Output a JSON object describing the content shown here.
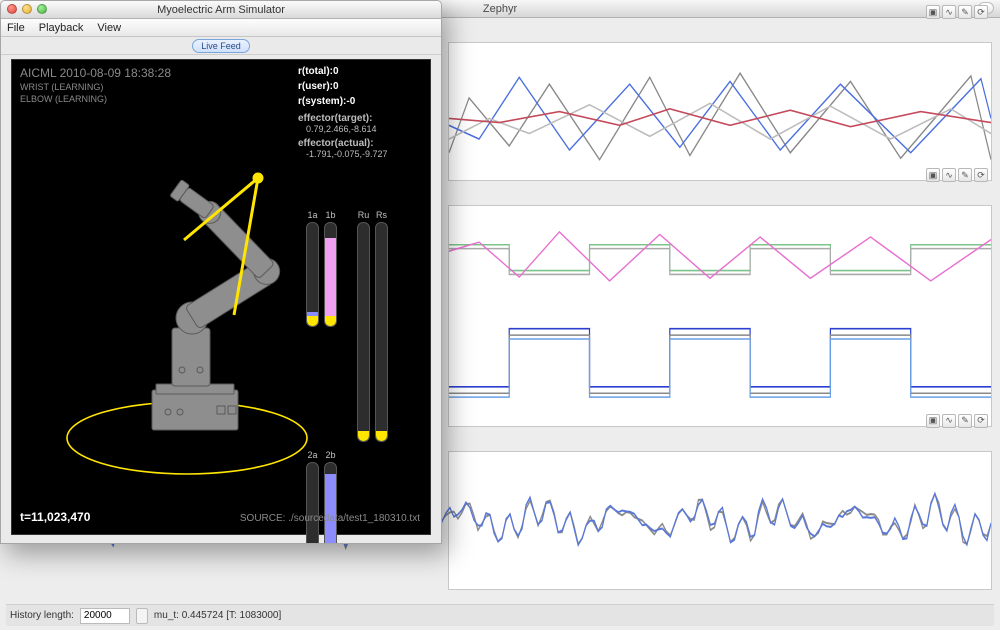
{
  "bg_window": {
    "title": "Zephyr"
  },
  "status": {
    "history_label": "History length:",
    "history_value": "20000",
    "mu_text": "mu_t: 0.445724 [T: 1083000]"
  },
  "sim_window": {
    "title": "Myoelectric Arm Simulator",
    "menu": {
      "file": "File",
      "playback": "Playback",
      "view": "View"
    },
    "livefeed": "Live Feed"
  },
  "viewport": {
    "header": "AICML 2010-08-09 18:38:28",
    "wrist": "WRIST (LEARNING)",
    "elbow": "ELBOW (LEARNING)",
    "rtotal_label": "r(total):",
    "rtotal_val": "0",
    "ruser_label": "r(user):",
    "ruser_val": "0",
    "rsystem_label": "r(system):",
    "rsystem_val": "-0",
    "eff_target_label": "effector(target):",
    "eff_target_val": "0.79,2.466,-8.614",
    "eff_actual_label": "effector(actual):",
    "eff_actual_val": "-1.791,-0.075,-9.727",
    "t_label": "t=11,023,470",
    "source": "SOURCE: ./sourcedata/test1_180310.txt",
    "bar_labels": {
      "a1": "1a",
      "b1": "1b",
      "ru": "Ru",
      "rs": "Rs",
      "a2": "2a",
      "b2": "2b"
    },
    "bar_styles": {
      "1a": {
        "fill_color": "#8a8aff",
        "fill_h": 14,
        "cap": "#ffe500"
      },
      "1b": {
        "fill_color": "#f0a0f0",
        "fill_h": 88,
        "cap": "#ffe500"
      },
      "Ru": {
        "fill_color": "#333333",
        "fill_h": 0,
        "cap": "#ffe500"
      },
      "Rs": {
        "fill_color": "#333333",
        "fill_h": 0,
        "cap": "#ffe500"
      },
      "2a": {
        "fill_color": "#7a7aff",
        "fill_h": 20,
        "cap": "#ffe500"
      },
      "2b": {
        "fill_color": "#8c8cff",
        "fill_h": 92,
        "cap": "#ffe500"
      }
    },
    "circle_color": "#ffe500",
    "arm_line_color": "#ffe500",
    "robot_fill": "#8e8e8e",
    "robot_stroke": "#5a5a5a"
  },
  "charts": {
    "grid_color": "#e6e6e6",
    "bg": "#ffffff",
    "panel1": {
      "series": [
        {
          "color": "#888888",
          "points": [
            [
              0,
              80
            ],
            [
              20,
              40
            ],
            [
              60,
              75
            ],
            [
              100,
              30
            ],
            [
              150,
              85
            ],
            [
              200,
              25
            ],
            [
              240,
              82
            ],
            [
              290,
              22
            ],
            [
              340,
              80
            ],
            [
              400,
              28
            ],
            [
              450,
              84
            ],
            [
              520,
              24
            ],
            [
              540,
              85
            ]
          ]
        },
        {
          "color": "#4a6fe0",
          "points": [
            [
              0,
              60
            ],
            [
              30,
              70
            ],
            [
              70,
              25
            ],
            [
              120,
              78
            ],
            [
              180,
              30
            ],
            [
              230,
              76
            ],
            [
              280,
              28
            ],
            [
              330,
              78
            ],
            [
              390,
              30
            ],
            [
              460,
              80
            ],
            [
              530,
              26
            ],
            [
              540,
              55
            ]
          ]
        },
        {
          "color": "#bcbcbc",
          "points": [
            [
              0,
              70
            ],
            [
              40,
              55
            ],
            [
              80,
              66
            ],
            [
              140,
              45
            ],
            [
              200,
              68
            ],
            [
              260,
              44
            ],
            [
              320,
              70
            ],
            [
              380,
              46
            ],
            [
              440,
              70
            ],
            [
              500,
              48
            ],
            [
              540,
              66
            ]
          ]
        },
        {
          "color": "#c44a5c",
          "points": [
            [
              0,
              55
            ],
            [
              50,
              58
            ],
            [
              110,
              50
            ],
            [
              170,
              60
            ],
            [
              220,
              48
            ],
            [
              280,
              60
            ],
            [
              340,
              49
            ],
            [
              400,
              61
            ],
            [
              470,
              50
            ],
            [
              540,
              58
            ]
          ]
        }
      ]
    },
    "panel2": {
      "series": [
        {
          "color": "#7cc48a",
          "points": [
            [
              0,
              30
            ],
            [
              60,
              30
            ],
            [
              60,
              50
            ],
            [
              140,
              50
            ],
            [
              140,
              30
            ],
            [
              220,
              30
            ],
            [
              220,
              50
            ],
            [
              300,
              50
            ],
            [
              300,
              30
            ],
            [
              380,
              30
            ],
            [
              380,
              50
            ],
            [
              460,
              50
            ],
            [
              460,
              30
            ],
            [
              540,
              30
            ]
          ]
        },
        {
          "color": "#aaaaaa",
          "points": [
            [
              0,
              33
            ],
            [
              60,
              33
            ],
            [
              60,
              53
            ],
            [
              140,
              53
            ],
            [
              140,
              33
            ],
            [
              220,
              33
            ],
            [
              220,
              53
            ],
            [
              300,
              53
            ],
            [
              300,
              33
            ],
            [
              380,
              33
            ],
            [
              380,
              53
            ],
            [
              460,
              53
            ],
            [
              460,
              33
            ],
            [
              540,
              33
            ]
          ]
        },
        {
          "color": "#e86fd0",
          "points": [
            [
              0,
              35
            ],
            [
              30,
              28
            ],
            [
              70,
              55
            ],
            [
              110,
              20
            ],
            [
              160,
              58
            ],
            [
              210,
              22
            ],
            [
              260,
              56
            ],
            [
              310,
              24
            ],
            [
              360,
              56
            ],
            [
              420,
              24
            ],
            [
              480,
              58
            ],
            [
              540,
              26
            ]
          ]
        },
        {
          "color": "#2a3fd0",
          "points": [
            [
              0,
              140
            ],
            [
              60,
              140
            ],
            [
              60,
              95
            ],
            [
              140,
              95
            ],
            [
              140,
              140
            ],
            [
              220,
              140
            ],
            [
              220,
              95
            ],
            [
              300,
              95
            ],
            [
              300,
              140
            ],
            [
              380,
              140
            ],
            [
              380,
              95
            ],
            [
              460,
              95
            ],
            [
              460,
              140
            ],
            [
              540,
              140
            ]
          ]
        },
        {
          "color": "#888888",
          "points": [
            [
              0,
              145
            ],
            [
              60,
              145
            ],
            [
              60,
              100
            ],
            [
              140,
              100
            ],
            [
              140,
              145
            ],
            [
              220,
              145
            ],
            [
              220,
              100
            ],
            [
              300,
              100
            ],
            [
              300,
              145
            ],
            [
              380,
              145
            ],
            [
              380,
              100
            ],
            [
              460,
              100
            ],
            [
              460,
              145
            ],
            [
              540,
              145
            ]
          ]
        },
        {
          "color": "#699fe8",
          "points": [
            [
              0,
              148
            ],
            [
              60,
              148
            ],
            [
              60,
              103
            ],
            [
              140,
              103
            ],
            [
              140,
              148
            ],
            [
              220,
              148
            ],
            [
              220,
              103
            ],
            [
              300,
              103
            ],
            [
              300,
              148
            ],
            [
              380,
              148
            ],
            [
              380,
              103
            ],
            [
              460,
              103
            ],
            [
              460,
              148
            ],
            [
              540,
              148
            ]
          ]
        }
      ]
    },
    "panel3": {
      "series": [
        {
          "color": "#8a8a8a",
          "noise": true
        },
        {
          "color": "#5a78d8",
          "noise": true
        }
      ]
    }
  }
}
